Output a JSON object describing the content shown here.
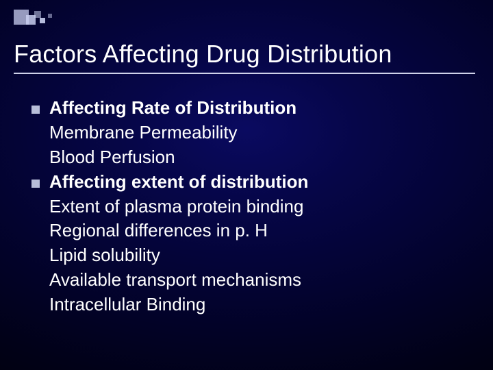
{
  "slide": {
    "title": "Factors Affecting Drug Distribution",
    "title_color": "#ffffff",
    "title_fontsize": 36,
    "rule_color": "#cfd2ea",
    "body_color": "#ffffff",
    "body_fontsize": 26,
    "bullet_color": "#b8bed9",
    "background": {
      "type": "radial-dark-blue",
      "inner": "#0a0a60",
      "outer": "#000000"
    },
    "decoration_squares_color": "#c9cff0",
    "sections": [
      {
        "heading": "Affecting Rate of Distribution",
        "items": [
          "Membrane Permeability",
          "Blood Perfusion"
        ]
      },
      {
        "heading": "Affecting extent of distribution",
        "items": [
          "Extent of plasma protein binding",
          "Regional differences in p. H",
          "Lipid solubility",
          "Available transport mechanisms",
          "Intracellular Binding"
        ]
      }
    ]
  }
}
